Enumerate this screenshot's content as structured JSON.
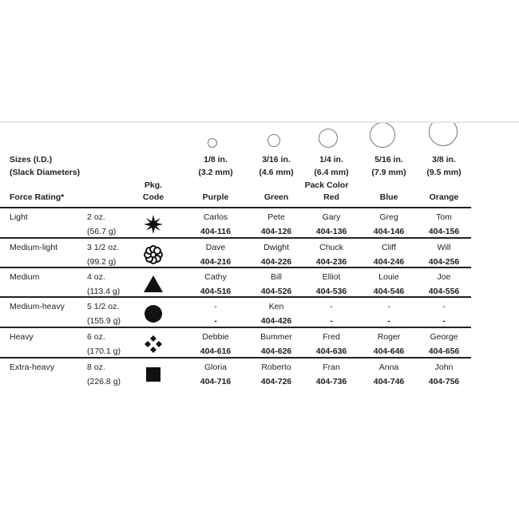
{
  "header": {
    "sizes_label": "Sizes (I.D.)",
    "slack_label": "(Slack Diameters)",
    "force_label": "Force Rating*",
    "pkg_label_1": "Pkg.",
    "pkg_label_2": "Code",
    "pack_color_label": "Pack Color"
  },
  "sizes": [
    {
      "inch": "1/8 in.",
      "mm": "(3.2 mm)",
      "color": "Purple"
    },
    {
      "inch": "3/16 in.",
      "mm": "(4.6 mm)",
      "color": "Green"
    },
    {
      "inch": "1/4 in.",
      "mm": "(6.4 mm)",
      "color": "Red"
    },
    {
      "inch": "5/16 in.",
      "mm": "(7.9 mm)",
      "color": "Blue"
    },
    {
      "inch": "3/8 in.",
      "mm": "(9.5 mm)",
      "color": "Orange"
    }
  ],
  "rows": [
    {
      "rating": "Light",
      "oz": "2 oz.",
      "g": "(56.7 g)",
      "icon": "star-icon",
      "cells": [
        {
          "name": "Carlos",
          "code": "404-116"
        },
        {
          "name": "Pete",
          "code": "404-126"
        },
        {
          "name": "Gary",
          "code": "404-136"
        },
        {
          "name": "Greg",
          "code": "404-146"
        },
        {
          "name": "Tom",
          "code": "404-156"
        }
      ]
    },
    {
      "rating": "Medium-light",
      "oz": "3 1/2 oz.",
      "g": "(99.2 g)",
      "icon": "flower-icon",
      "cells": [
        {
          "name": "Dave",
          "code": "404-216"
        },
        {
          "name": "Dwight",
          "code": "404-226"
        },
        {
          "name": "Chuck",
          "code": "404-236"
        },
        {
          "name": "Cliff",
          "code": "404-246"
        },
        {
          "name": "Will",
          "code": "404-256"
        }
      ]
    },
    {
      "rating": "Medium",
      "oz": "4 oz.",
      "g": "(113.4 g)",
      "icon": "triangle-icon",
      "cells": [
        {
          "name": "Cathy",
          "code": "404-516"
        },
        {
          "name": "Bill",
          "code": "404-526"
        },
        {
          "name": "Elliot",
          "code": "404-536"
        },
        {
          "name": "Louie",
          "code": "404-546"
        },
        {
          "name": "Joe",
          "code": "404-556"
        }
      ]
    },
    {
      "rating": "Medium-heavy",
      "oz": "5 1/2 oz.",
      "g": "(155.9 g)",
      "icon": "circle-icon",
      "cells": [
        {
          "name": "-",
          "code": "-"
        },
        {
          "name": "Ken",
          "code": "404-426"
        },
        {
          "name": "-",
          "code": "-"
        },
        {
          "name": "-",
          "code": "-"
        },
        {
          "name": "-",
          "code": "-"
        }
      ]
    },
    {
      "rating": "Heavy",
      "oz": "6 oz.",
      "g": "(170.1 g)",
      "icon": "diamonds-icon",
      "cells": [
        {
          "name": "Debbie",
          "code": "404-616"
        },
        {
          "name": "Bummer",
          "code": "404-626"
        },
        {
          "name": "Fred",
          "code": "404-636"
        },
        {
          "name": "Roger",
          "code": "404-646"
        },
        {
          "name": "George",
          "code": "404-656"
        }
      ]
    },
    {
      "rating": "Extra-heavy",
      "oz": "8 oz.",
      "g": "(226.8 g)",
      "icon": "square-icon",
      "cells": [
        {
          "name": "Gloria",
          "code": "404-716"
        },
        {
          "name": "Roberto",
          "code": "404-726"
        },
        {
          "name": "Fran",
          "code": "404-736"
        },
        {
          "name": "Anna",
          "code": "404-746"
        },
        {
          "name": "John",
          "code": "404-756"
        }
      ]
    }
  ]
}
